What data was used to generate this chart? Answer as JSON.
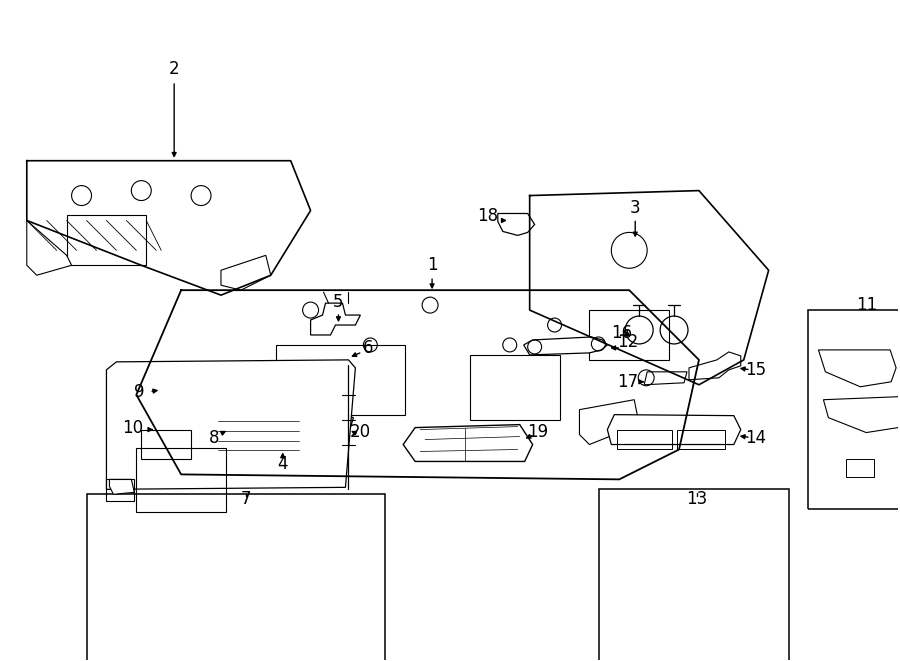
{
  "background_color": "#ffffff",
  "line_color": "#000000",
  "figure_width": 9.0,
  "figure_height": 6.61,
  "dpi": 100
}
